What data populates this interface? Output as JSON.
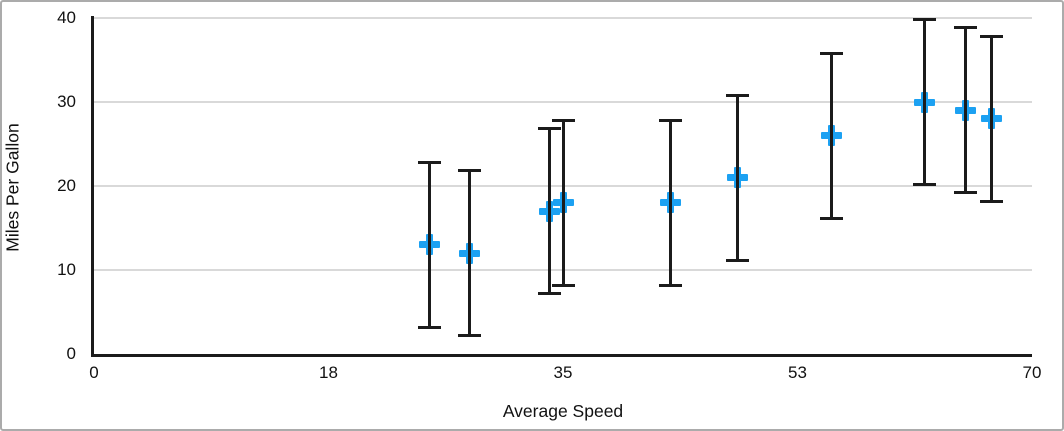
{
  "chart_data": {
    "type": "scatter",
    "title": "",
    "xlabel": "Average Speed",
    "ylabel": "Miles Per Gallon",
    "xlim": [
      0,
      70
    ],
    "ylim": [
      0,
      40
    ],
    "x_ticks": [
      {
        "pos": 0,
        "label": "0"
      },
      {
        "pos": 17.5,
        "label": "18"
      },
      {
        "pos": 35,
        "label": "35"
      },
      {
        "pos": 52.5,
        "label": "53"
      },
      {
        "pos": 70,
        "label": "70"
      }
    ],
    "y_ticks": [
      {
        "value": 0,
        "label": "0"
      },
      {
        "value": 10,
        "label": "10"
      },
      {
        "value": 20,
        "label": "20"
      },
      {
        "value": 30,
        "label": "30"
      },
      {
        "value": 40,
        "label": "40"
      }
    ],
    "grid": "horizontal",
    "legend": "none",
    "marker_style": "plus",
    "marker_color": "#1CA1F2",
    "error_bar_color": "#1b1b1b",
    "points": [
      {
        "x": 25,
        "y": 13,
        "err": 10
      },
      {
        "x": 28,
        "y": 12,
        "err": 10
      },
      {
        "x": 34,
        "y": 17,
        "err": 10
      },
      {
        "x": 35,
        "y": 18,
        "err": 10
      },
      {
        "x": 43,
        "y": 18,
        "err": 10
      },
      {
        "x": 48,
        "y": 21,
        "err": 10
      },
      {
        "x": 55,
        "y": 26,
        "err": 10
      },
      {
        "x": 62,
        "y": 30,
        "err": 10
      },
      {
        "x": 65,
        "y": 29,
        "err": 10
      },
      {
        "x": 67,
        "y": 28,
        "err": 10
      }
    ]
  }
}
